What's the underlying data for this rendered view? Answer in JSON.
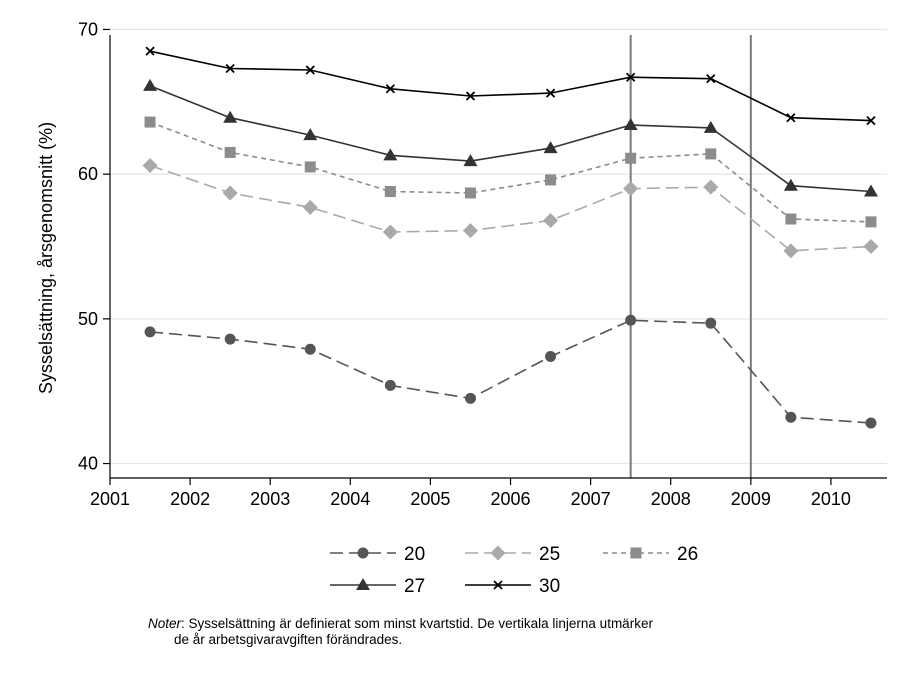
{
  "chart_data": {
    "type": "line",
    "title": "",
    "xlabel": "",
    "ylabel": "Sysselsättning, årsgenomsnitt (%)",
    "xlim": [
      2001,
      2010.7
    ],
    "ylim": [
      39,
      71
    ],
    "x_ticks": [
      2001,
      2002,
      2003,
      2004,
      2005,
      2006,
      2007,
      2008,
      2009,
      2010
    ],
    "y_ticks": [
      40,
      50,
      60,
      70
    ],
    "grid": "horizontal",
    "legend_placement": "bottom",
    "vertical_lines": [
      2007.5,
      2009
    ],
    "x": [
      2001.5,
      2002.5,
      2003.5,
      2004.5,
      2005.5,
      2006.5,
      2007.5,
      2008.5,
      2009.5,
      2010.5
    ],
    "series": [
      {
        "name": "20",
        "marker": "circle",
        "dash": "long-dash",
        "color": "#555555",
        "values": [
          49.1,
          48.6,
          47.9,
          45.4,
          44.5,
          47.4,
          49.9,
          49.7,
          43.2,
          42.8
        ]
      },
      {
        "name": "25",
        "marker": "diamond",
        "dash": "long-dash",
        "color": "#a9a9a9",
        "values": [
          60.6,
          58.7,
          57.7,
          56.0,
          56.1,
          56.8,
          59.0,
          59.1,
          54.7,
          55.0
        ]
      },
      {
        "name": "26",
        "marker": "square",
        "dash": "short-dash",
        "color": "#8c8c8c",
        "values": [
          63.6,
          61.5,
          60.5,
          58.8,
          58.7,
          59.6,
          61.1,
          61.4,
          56.9,
          56.7
        ]
      },
      {
        "name": "27",
        "marker": "triangle",
        "dash": "solid",
        "color": "#333333",
        "values": [
          66.1,
          63.9,
          62.7,
          61.3,
          60.9,
          61.8,
          63.4,
          63.2,
          59.2,
          58.8
        ]
      },
      {
        "name": "30",
        "marker": "x",
        "dash": "solid",
        "color": "#000000",
        "values": [
          68.5,
          67.3,
          67.2,
          65.9,
          65.4,
          65.6,
          66.7,
          66.6,
          63.9,
          63.7
        ]
      }
    ]
  },
  "note": {
    "label": "Noter",
    "line1": ": Sysselsättning är definierat som minst kvartstid. De vertikala linjerna utmärker",
    "line2": "de år arbetsgivaravgiften förändrades."
  }
}
